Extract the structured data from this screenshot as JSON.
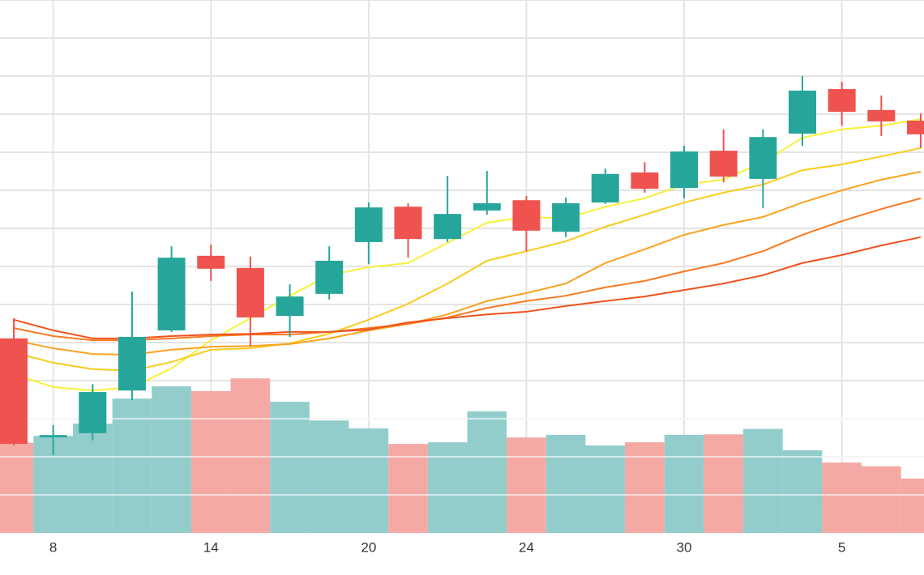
{
  "chart_data": {
    "type": "candlestick",
    "categories": [
      null,
      "8",
      null,
      null,
      null,
      "14",
      null,
      null,
      null,
      "20",
      null,
      null,
      null,
      "24",
      null,
      null,
      null,
      "30",
      null,
      null,
      null,
      "5",
      null,
      null
    ],
    "open": [
      5.11,
      2.51,
      2.62,
      3.74,
      5.32,
      7.28,
      6.96,
      5.7,
      6.28,
      7.64,
      8.57,
      7.72,
      8.47,
      8.74,
      7.91,
      8.68,
      9.47,
      9.06,
      10.04,
      9.3,
      10.49,
      11.66,
      11.11,
      10.83
    ],
    "high": [
      5.64,
      2.83,
      3.91,
      6.34,
      7.53,
      7.57,
      7.26,
      6.53,
      7.53,
      8.68,
      8.66,
      9.38,
      9.51,
      8.85,
      8.81,
      9.57,
      9.74,
      10.17,
      10.6,
      10.6,
      12.0,
      11.85,
      11.49,
      11.02
    ],
    "low": [
      2.3,
      2.04,
      2.43,
      3.49,
      5.28,
      6.62,
      4.89,
      5.15,
      6.13,
      7.06,
      7.23,
      7.64,
      8.36,
      7.4,
      7.77,
      8.64,
      8.94,
      8.79,
      9.21,
      8.53,
      10.17,
      10.7,
      10.43,
      10.11
    ],
    "close": [
      2.34,
      2.57,
      3.7,
      5.15,
      7.23,
      6.94,
      5.66,
      6.21,
      7.15,
      8.55,
      7.72,
      8.38,
      8.66,
      7.94,
      8.66,
      9.43,
      9.04,
      10.02,
      9.36,
      10.4,
      11.62,
      11.06,
      10.81,
      10.47
    ],
    "volume": [
      16.9,
      18.2,
      20.5,
      25.2,
      27.5,
      26.6,
      29.0,
      24.6,
      21.1,
      19.6,
      16.7,
      17.0,
      22.8,
      17.9,
      18.4,
      16.4,
      17.0,
      18.4,
      18.5,
      19.5,
      15.5,
      13.2,
      12.5,
      10.2
    ],
    "up_color": "#26a69a",
    "down_color": "#ef5350",
    "volume_up_color": "#92cdcc",
    "volume_down_color": "#f4a9a4",
    "moving_averages": [
      {
        "color": "#f7f13a",
        "values": [
          4.17,
          3.83,
          3.74,
          3.83,
          4.32,
          5.06,
          5.64,
          6.23,
          6.77,
          6.98,
          7.09,
          7.62,
          8.15,
          8.3,
          8.26,
          8.57,
          8.79,
          9.15,
          9.28,
          9.74,
          10.38,
          10.6,
          10.7,
          10.87
        ]
      },
      {
        "color": "#f9cb1c",
        "values": [
          4.74,
          4.47,
          4.3,
          4.26,
          4.49,
          4.81,
          4.85,
          4.98,
          5.23,
          5.6,
          6.02,
          6.55,
          7.15,
          7.4,
          7.66,
          8.04,
          8.36,
          8.68,
          8.94,
          9.15,
          9.53,
          9.68,
          9.89,
          10.11
        ]
      },
      {
        "color": "#f9a322",
        "values": [
          5.06,
          4.85,
          4.7,
          4.68,
          4.81,
          4.89,
          4.91,
          4.96,
          5.11,
          5.32,
          5.49,
          5.74,
          6.09,
          6.3,
          6.55,
          7.09,
          7.45,
          7.83,
          8.09,
          8.3,
          8.68,
          9.0,
          9.28,
          9.49
        ]
      },
      {
        "color": "#f77b20",
        "values": [
          5.38,
          5.17,
          5.06,
          5.06,
          5.11,
          5.17,
          5.21,
          5.21,
          5.28,
          5.38,
          5.49,
          5.66,
          5.91,
          6.09,
          6.23,
          6.45,
          6.62,
          6.87,
          7.09,
          7.4,
          7.83,
          8.19,
          8.51,
          8.79
        ]
      },
      {
        "color": "#f0521e",
        "values": [
          5.6,
          5.32,
          5.11,
          5.11,
          5.17,
          5.21,
          5.23,
          5.28,
          5.28,
          5.34,
          5.53,
          5.64,
          5.74,
          5.81,
          5.96,
          6.09,
          6.21,
          6.38,
          6.55,
          6.77,
          7.09,
          7.3,
          7.55,
          7.77
        ]
      }
    ],
    "ylim": [
      0,
      14
    ],
    "yticks": [
      1,
      2,
      3,
      4,
      5,
      6,
      7,
      8,
      9,
      10,
      11,
      12,
      13,
      14
    ],
    "y2lim": [
      0,
      100
    ],
    "grid": true
  }
}
